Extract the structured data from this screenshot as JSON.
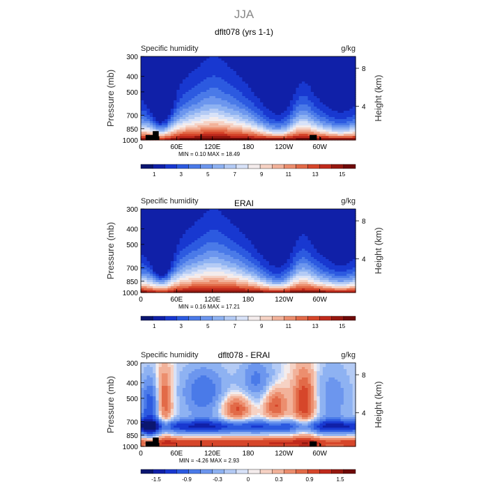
{
  "page_title": "JJA",
  "colors": {
    "land": "#000000",
    "diverging_scale": [
      "#0b1670",
      "#1020a8",
      "#1838d0",
      "#2c5ae0",
      "#4a7ae8",
      "#6c96ee",
      "#8eb2f2",
      "#b4cbf5",
      "#d8e2f8",
      "#f4ecec",
      "#f6d2c4",
      "#f2b29a",
      "#ec8e6e",
      "#e26a48",
      "#d6462a",
      "#c02a1c",
      "#961810",
      "#6e0a08"
    ]
  },
  "chart_data": [
    {
      "type": "heatmap",
      "title": "dflt078 (yrs 1-1)",
      "left_label": "Specific humidity",
      "right_label": "g/kg",
      "xlabel": "",
      "ylabel": "Pressure (mb)",
      "ylabel_right": "Height (km)",
      "x_ticks": [
        "0",
        "60E",
        "120E",
        "180",
        "120W",
        "60W"
      ],
      "y_ticks": [
        "300",
        "400",
        "500",
        "700",
        "850",
        "1000"
      ],
      "y_right_ticks": [
        "8",
        "4"
      ],
      "stats": {
        "min": "0.10",
        "max": "18.49"
      },
      "stats_text": "MIN =    0.10   MAX =   18.49",
      "colorbar": {
        "ticks": [
          "1",
          "3",
          "5",
          "7",
          "9",
          "11",
          "13",
          "15"
        ],
        "levels": [
          0,
          1,
          2,
          3,
          4,
          5,
          6,
          7,
          8,
          9,
          10,
          11,
          12,
          13,
          14,
          15,
          16
        ]
      },
      "value_range": [
        0,
        18.49
      ],
      "mask_land": true
    },
    {
      "type": "heatmap",
      "title": "ERAI",
      "left_label": "Specific humidity",
      "right_label": "g/kg",
      "xlabel": "",
      "ylabel": "Pressure (mb)",
      "ylabel_right": "Height (km)",
      "x_ticks": [
        "0",
        "60E",
        "120E",
        "180",
        "120W",
        "60W"
      ],
      "y_ticks": [
        "300",
        "400",
        "500",
        "700",
        "850",
        "1000"
      ],
      "y_right_ticks": [
        "8",
        "4"
      ],
      "stats": {
        "min": "0.16",
        "max": "17.21"
      },
      "stats_text": "MIN =    0.16   MAX =   17.21",
      "colorbar": {
        "ticks": [
          "1",
          "3",
          "5",
          "7",
          "9",
          "11",
          "13",
          "15"
        ],
        "levels": [
          0,
          1,
          2,
          3,
          4,
          5,
          6,
          7,
          8,
          9,
          10,
          11,
          12,
          13,
          14,
          15,
          16
        ]
      },
      "value_range": [
        0,
        17.21
      ],
      "mask_land": false
    },
    {
      "type": "heatmap",
      "title": "dflt078 - ERAI",
      "left_label": "Specific humidity",
      "right_label": "g/kg",
      "xlabel": "",
      "ylabel": "Pressure (mb)",
      "ylabel_right": "Height (km)",
      "x_ticks": [
        "0",
        "60E",
        "120E",
        "180",
        "120W",
        "60W"
      ],
      "y_ticks": [
        "300",
        "400",
        "500",
        "700",
        "850",
        "1000"
      ],
      "y_right_ticks": [
        "8",
        "4"
      ],
      "stats": {
        "min": "-4.26",
        "max": "2.93"
      },
      "stats_text": "MIN =   -4.26   MAX =    2.93",
      "colorbar": {
        "ticks": [
          "-1.5",
          "-0.9",
          "-0.3",
          "0",
          "0.3",
          "0.9",
          "1.5"
        ],
        "levels": [
          -2.1,
          -1.8,
          -1.5,
          -1.2,
          -0.9,
          -0.6,
          -0.3,
          -0.1,
          0,
          0.1,
          0.3,
          0.6,
          0.9,
          1.2,
          1.5,
          1.8,
          2.1
        ]
      },
      "value_range": [
        -4.26,
        2.93
      ],
      "mask_land": true
    }
  ]
}
